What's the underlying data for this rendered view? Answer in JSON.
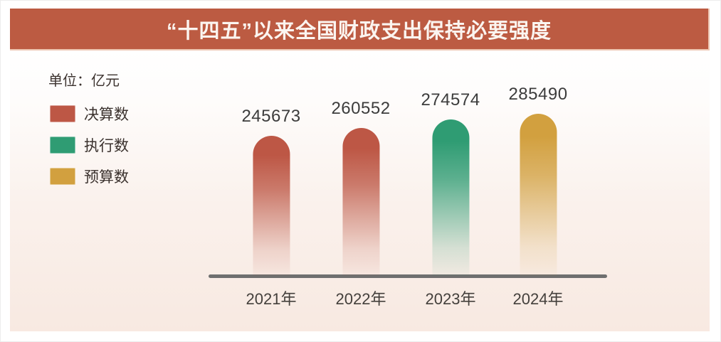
{
  "page": {
    "title_banner": {
      "text": "“十四五”以来全国财政支出保持必要强度",
      "background_color": "#bc5b42",
      "text_color": "#fbf5f0"
    }
  },
  "chart_data": {
    "type": "bar",
    "title": "“十四五”以来全国财政支出保持必要强度",
    "unit_label": "单位：亿元",
    "categories": [
      "2021年",
      "2022年",
      "2023年",
      "2024年"
    ],
    "values": [
      245673,
      260552,
      274574,
      285490
    ],
    "bars": [
      {
        "category": "2021年",
        "value": 245673,
        "series": "决算数",
        "color": "#bd5745"
      },
      {
        "category": "2022年",
        "value": 260552,
        "series": "决算数",
        "color": "#bd5745"
      },
      {
        "category": "2023年",
        "value": 274574,
        "series": "执行数",
        "color": "#2f9c73"
      },
      {
        "category": "2024年",
        "value": 285490,
        "series": "预算数",
        "color": "#d2a03f"
      }
    ],
    "legend": [
      {
        "label": "决算数",
        "color": "#bd5745"
      },
      {
        "label": "执行数",
        "color": "#2f9c73"
      },
      {
        "label": "预算数",
        "color": "#d2a03f"
      }
    ],
    "legend_position": "top-left",
    "data_labels": true,
    "grid": false,
    "axis_color": "#6f6f6f",
    "ylim": [
      0,
      285490
    ],
    "bar_style": "rounded-top, gradient fade to background at bottom"
  }
}
